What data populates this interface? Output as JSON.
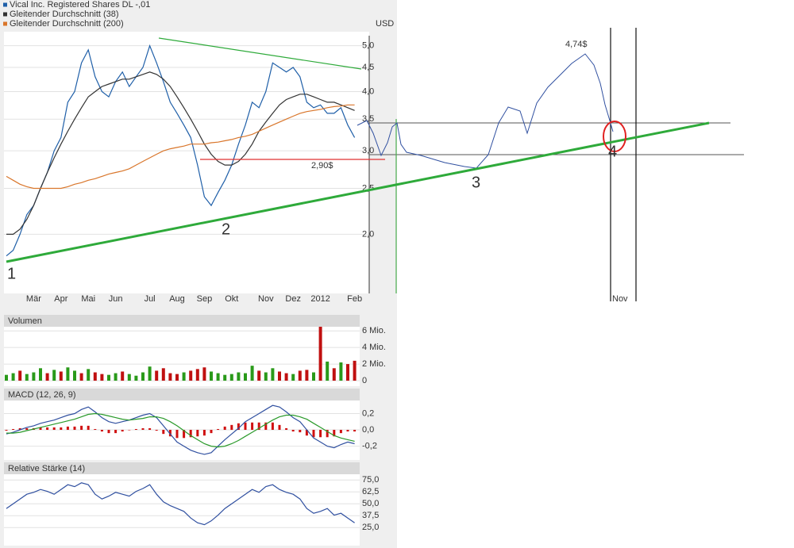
{
  "chart_data": [
    {
      "type": "line",
      "log": true,
      "grid": true,
      "legend": "top-left",
      "y_label": "USD",
      "categories": [
        null,
        null,
        null,
        null,
        "Mär",
        null,
        null,
        null,
        "Apr",
        null,
        null,
        null,
        "Mai",
        null,
        null,
        null,
        "Jun",
        null,
        null,
        null,
        null,
        "Jul",
        null,
        null,
        null,
        "Aug",
        null,
        null,
        null,
        "Sep",
        null,
        null,
        null,
        "Okt",
        null,
        null,
        null,
        null,
        "Nov",
        null,
        null,
        null,
        "Dez",
        null,
        null,
        null,
        "2012",
        null,
        null,
        null,
        null,
        "Feb"
      ],
      "ylim": [
        1.5,
        5.25
      ],
      "yticks": [
        {
          "value": 2,
          "label": "2,0"
        },
        {
          "value": 2.5,
          "label": "2,5"
        },
        {
          "value": 3,
          "label": "3,0"
        },
        {
          "value": 3.5,
          "label": "3,5"
        },
        {
          "value": 4,
          "label": "4,0"
        },
        {
          "value": 4.5,
          "label": "4,5"
        },
        {
          "value": 5,
          "label": "5,0"
        }
      ],
      "series": [
        {
          "name": "Vical Inc. Registered Shares DL -,01",
          "color": "#1f5fa8",
          "values": [
            1.8,
            1.85,
            2.0,
            2.2,
            2.3,
            2.5,
            2.7,
            3.0,
            3.2,
            3.8,
            4.0,
            4.6,
            4.9,
            4.3,
            4.0,
            3.9,
            4.2,
            4.4,
            4.1,
            4.3,
            4.5,
            5.0,
            4.6,
            4.2,
            3.8,
            3.6,
            3.4,
            3.2,
            2.8,
            2.4,
            2.3,
            2.45,
            2.6,
            2.8,
            3.1,
            3.4,
            3.8,
            3.7,
            4.0,
            4.6,
            4.5,
            4.4,
            4.5,
            4.3,
            3.8,
            3.7,
            3.75,
            3.6,
            3.6,
            3.7,
            3.4,
            3.2
          ]
        },
        {
          "name": "Gleitender Durchschnitt (38)",
          "color": "#333333",
          "values": [
            2.0,
            2.0,
            2.05,
            2.15,
            2.3,
            2.5,
            2.7,
            2.9,
            3.1,
            3.3,
            3.5,
            3.7,
            3.9,
            4.0,
            4.1,
            4.15,
            4.2,
            4.25,
            4.25,
            4.3,
            4.35,
            4.4,
            4.35,
            4.25,
            4.1,
            3.9,
            3.7,
            3.5,
            3.3,
            3.1,
            2.95,
            2.85,
            2.8,
            2.8,
            2.85,
            2.95,
            3.1,
            3.3,
            3.45,
            3.6,
            3.75,
            3.85,
            3.9,
            3.95,
            3.95,
            3.9,
            3.85,
            3.8,
            3.8,
            3.75,
            3.7,
            3.65
          ]
        },
        {
          "name": "Gleitender Durchschnitt (200)",
          "color": "#d9762b",
          "values": [
            2.65,
            2.6,
            2.55,
            2.52,
            2.5,
            2.5,
            2.5,
            2.5,
            2.5,
            2.52,
            2.55,
            2.57,
            2.6,
            2.62,
            2.65,
            2.68,
            2.7,
            2.72,
            2.75,
            2.8,
            2.85,
            2.9,
            2.95,
            3.0,
            3.03,
            3.05,
            3.07,
            3.1,
            3.1,
            3.1,
            3.12,
            3.13,
            3.15,
            3.17,
            3.2,
            3.22,
            3.25,
            3.3,
            3.35,
            3.4,
            3.45,
            3.5,
            3.55,
            3.6,
            3.63,
            3.65,
            3.67,
            3.7,
            3.72,
            3.73,
            3.75,
            3.75
          ]
        }
      ],
      "annotations": [
        "1",
        "2",
        "3",
        "4",
        "4,74$",
        "2,90$",
        "Nov"
      ]
    },
    {
      "type": "bar",
      "title": "Volumen",
      "grid": true,
      "ylim": [
        0,
        6500000
      ],
      "yticks": [
        0,
        {
          "value": 2000000,
          "label": "2 Mio."
        },
        {
          "value": 4000000,
          "label": "4 Mio."
        },
        {
          "value": 6000000,
          "label": "6 Mio."
        }
      ],
      "values": [
        700000,
        900000,
        1200000,
        800000,
        1000000,
        1500000,
        900000,
        1300000,
        1100000,
        1600000,
        1200000,
        900000,
        1400000,
        1000000,
        800000,
        700000,
        900000,
        1100000,
        800000,
        600000,
        1000000,
        1700000,
        1200000,
        1500000,
        900000,
        800000,
        1000000,
        1200000,
        1400000,
        1600000,
        1100000,
        900000,
        700000,
        800000,
        1000000,
        900000,
        1800000,
        1200000,
        1000000,
        1500000,
        1100000,
        900000,
        800000,
        1200000,
        1300000,
        1000000,
        6500000,
        2300000,
        1500000,
        2200000,
        2000000,
        2400000
      ],
      "colors": [
        "#2a9a1a",
        "#2a9a1a",
        "#c01010",
        "#2a9a1a",
        "#2a9a1a",
        "#2a9a1a",
        "#c01010",
        "#2a9a1a",
        "#c01010",
        "#2a9a1a",
        "#2a9a1a",
        "#c01010",
        "#2a9a1a",
        "#c01010",
        "#c01010",
        "#2a9a1a",
        "#2a9a1a",
        "#c01010",
        "#2a9a1a",
        "#2a9a1a",
        "#2a9a1a",
        "#2a9a1a",
        "#c01010",
        "#c01010",
        "#c01010",
        "#c01010",
        "#2a9a1a",
        "#c01010",
        "#c01010",
        "#c01010",
        "#2a9a1a",
        "#2a9a1a",
        "#2a9a1a",
        "#2a9a1a",
        "#2a9a1a",
        "#2a9a1a",
        "#2a9a1a",
        "#c01010",
        "#2a9a1a",
        "#2a9a1a",
        "#c01010",
        "#c01010",
        "#2a9a1a",
        "#c01010",
        "#c01010",
        "#2a9a1a",
        "#c01010",
        "#2a9a1a",
        "#c01010",
        "#2a9a1a",
        "#c01010",
        "#c01010"
      ]
    },
    {
      "type": "line",
      "title": "MACD (12, 26, 9)",
      "grid": true,
      "ylim": [
        -0.35,
        0.36
      ],
      "yticks": [
        {
          "value": -0.2,
          "label": "-0,2"
        },
        {
          "value": 0,
          "label": "0,0"
        },
        {
          "value": 0.2,
          "label": "0,2"
        }
      ],
      "series": [
        {
          "color": "#d01010",
          "style": "bar",
          "values": [
            -0.01,
            0.01,
            0.02,
            0.02,
            0.02,
            0.03,
            0.03,
            0.03,
            0.03,
            0.04,
            0.04,
            0.05,
            0.05,
            0.01,
            -0.02,
            -0.04,
            -0.04,
            -0.02,
            0,
            0.01,
            0.02,
            0.02,
            -0.01,
            -0.05,
            -0.08,
            -0.1,
            -0.1,
            -0.09,
            -0.08,
            -0.07,
            -0.04,
            0.01,
            0.04,
            0.06,
            0.08,
            0.09,
            0.09,
            0.09,
            0.09,
            0.09,
            0.06,
            0.02,
            -0.02,
            -0.03,
            -0.07,
            -0.09,
            -0.09,
            -0.09,
            -0.08,
            -0.04,
            -0.02,
            -0.02
          ]
        },
        {
          "color": "#3050a0",
          "values": [
            -0.05,
            -0.03,
            0,
            0.03,
            0.05,
            0.08,
            0.1,
            0.12,
            0.15,
            0.18,
            0.2,
            0.25,
            0.28,
            0.22,
            0.15,
            0.1,
            0.08,
            0.1,
            0.12,
            0.15,
            0.18,
            0.2,
            0.15,
            0.05,
            -0.05,
            -0.15,
            -0.2,
            -0.25,
            -0.28,
            -0.3,
            -0.28,
            -0.2,
            -0.12,
            -0.05,
            0.02,
            0.1,
            0.15,
            0.2,
            0.25,
            0.3,
            0.28,
            0.22,
            0.15,
            0.1,
            0,
            -0.1,
            -0.15,
            -0.2,
            -0.22,
            -0.18,
            -0.15,
            -0.17
          ]
        },
        {
          "color": "#2a9a2a",
          "values": [
            -0.04,
            -0.04,
            -0.03,
            -0.01,
            0.01,
            0.03,
            0.05,
            0.07,
            0.09,
            0.11,
            0.13,
            0.16,
            0.19,
            0.2,
            0.19,
            0.17,
            0.15,
            0.13,
            0.12,
            0.13,
            0.14,
            0.16,
            0.16,
            0.14,
            0.1,
            0.05,
            -0.01,
            -0.07,
            -0.12,
            -0.17,
            -0.2,
            -0.21,
            -0.2,
            -0.17,
            -0.13,
            -0.08,
            -0.03,
            0.02,
            0.07,
            0.12,
            0.16,
            0.18,
            0.18,
            0.16,
            0.13,
            0.08,
            0.03,
            -0.02,
            -0.07,
            -0.1,
            -0.12,
            -0.14
          ]
        }
      ]
    },
    {
      "type": "line",
      "title": "Relative Stärke (14)",
      "grid": true,
      "ylim": [
        6,
        81
      ],
      "yticks": [
        {
          "value": 25,
          "label": "25,0"
        },
        {
          "value": 37.5,
          "label": "37,5"
        },
        {
          "value": 50,
          "label": "50,0"
        },
        {
          "value": 62.5,
          "label": "62,5"
        },
        {
          "value": 75,
          "label": "75,0"
        }
      ],
      "series": [
        {
          "color": "#3050a0",
          "values": [
            45,
            50,
            55,
            60,
            62,
            65,
            63,
            60,
            65,
            70,
            68,
            72,
            70,
            60,
            55,
            58,
            62,
            60,
            58,
            63,
            66,
            70,
            60,
            52,
            48,
            45,
            42,
            35,
            30,
            28,
            32,
            38,
            45,
            50,
            55,
            60,
            65,
            62,
            68,
            70,
            65,
            62,
            60,
            55,
            45,
            40,
            42,
            45,
            38,
            40,
            35,
            30
          ]
        }
      ]
    }
  ]
}
